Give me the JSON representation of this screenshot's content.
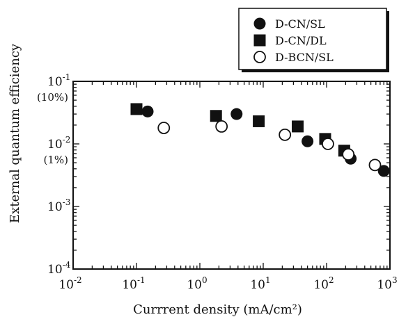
{
  "chart_data": {
    "type": "scatter",
    "title": "",
    "xlabel": "Currrent density (mA/cm²)",
    "ylabel": "External quantum efficiency",
    "x_scale": "log",
    "y_scale": "log",
    "xlim": [
      0.01,
      1000
    ],
    "ylim": [
      0.0001,
      0.1
    ],
    "x_ticks": [
      {
        "base": "10",
        "exp": "-2"
      },
      {
        "base": "10",
        "exp": "-1"
      },
      {
        "base": "10",
        "exp": "0"
      },
      {
        "base": "10",
        "exp": "1"
      },
      {
        "base": "10",
        "exp": "2"
      },
      {
        "base": "10",
        "exp": "3"
      }
    ],
    "y_ticks": [
      {
        "base": "10",
        "exp": "-4"
      },
      {
        "base": "10",
        "exp": "-3"
      },
      {
        "base": "10",
        "exp": "-2"
      },
      {
        "base": "10",
        "exp": "-1"
      }
    ],
    "y_annotations": [
      "(10%)",
      "(1%)"
    ],
    "grid": false,
    "legend_position": "top-right, outside plot",
    "series": [
      {
        "name": "D-CN/SL",
        "marker": "filled-circle",
        "points": [
          [
            0.15,
            0.033
          ],
          [
            3.8,
            0.03
          ],
          [
            50,
            0.011
          ],
          [
            240,
            0.0058
          ],
          [
            800,
            0.0037
          ]
        ]
      },
      {
        "name": "D-CN/DL",
        "marker": "filled-square",
        "points": [
          [
            0.1,
            0.036
          ],
          [
            1.8,
            0.028
          ],
          [
            8.5,
            0.023
          ],
          [
            35,
            0.019
          ],
          [
            95,
            0.012
          ],
          [
            190,
            0.0078
          ]
        ]
      },
      {
        "name": "D-BCN/SL",
        "marker": "open-circle",
        "points": [
          [
            0.27,
            0.018
          ],
          [
            2.2,
            0.019
          ],
          [
            22,
            0.014
          ],
          [
            105,
            0.01
          ],
          [
            220,
            0.0068
          ],
          [
            580,
            0.0046
          ]
        ]
      }
    ]
  },
  "marker_color": "#111111"
}
